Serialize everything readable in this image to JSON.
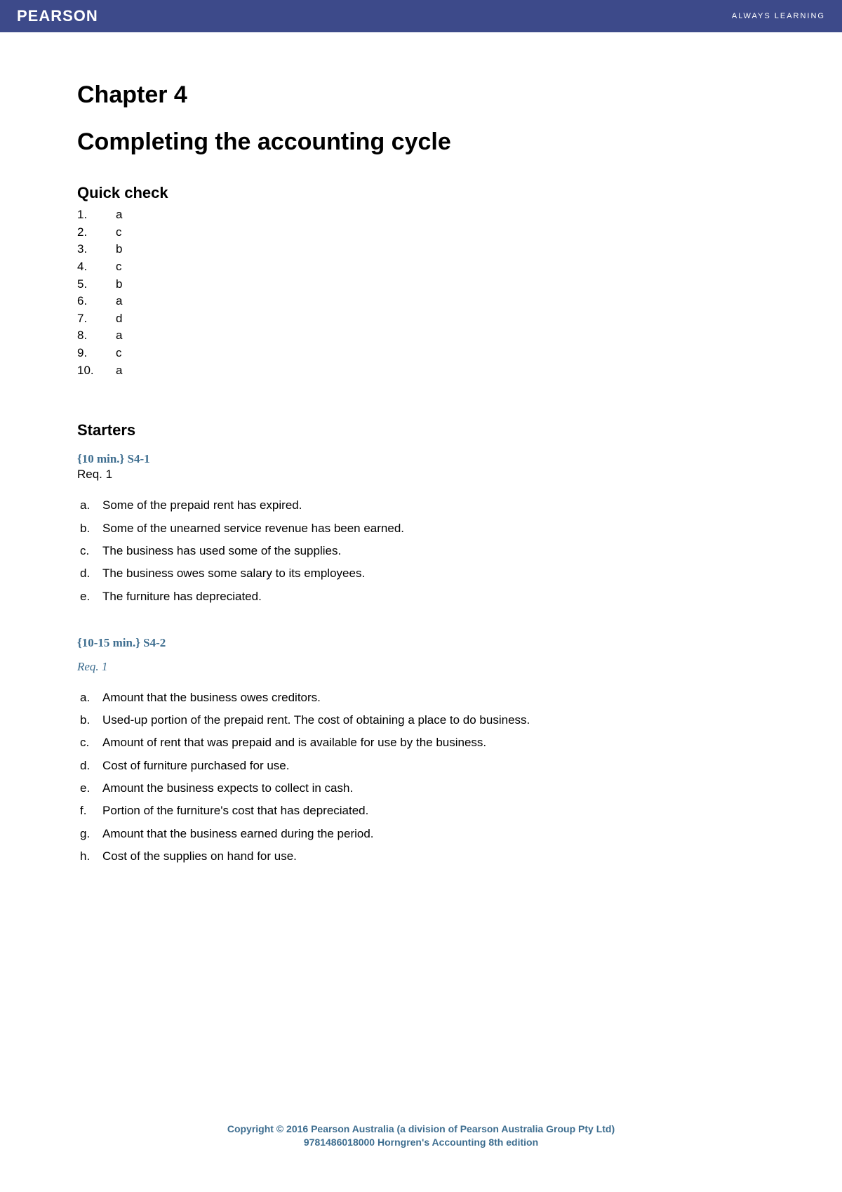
{
  "header": {
    "brand": "PEARSON",
    "tagline": "ALWAYS LEARNING"
  },
  "chapter": {
    "number_label": "Chapter 4",
    "title": "Completing the accounting cycle"
  },
  "quick_check": {
    "heading": "Quick check",
    "items": [
      {
        "num": "1.",
        "ans": "a"
      },
      {
        "num": "2.",
        "ans": "c"
      },
      {
        "num": "3.",
        "ans": "b"
      },
      {
        "num": "4.",
        "ans": "c"
      },
      {
        "num": "5.",
        "ans": "b"
      },
      {
        "num": "6.",
        "ans": "a"
      },
      {
        "num": "7.",
        "ans": "d"
      },
      {
        "num": "8.",
        "ans": "a"
      },
      {
        "num": "9.",
        "ans": "c"
      },
      {
        "num": "10.",
        "ans": "a"
      }
    ]
  },
  "starters": {
    "heading": "Starters",
    "s4_1": {
      "label": "{10 min.} S4-1",
      "req": "Req. 1",
      "answers": [
        {
          "letter": "a.",
          "text": "Some of the prepaid rent has expired."
        },
        {
          "letter": "b.",
          "text": "Some of the unearned service revenue has been earned."
        },
        {
          "letter": "c.",
          "text": "The business has used some of the supplies."
        },
        {
          "letter": "d.",
          "text": "The business owes some salary to its employees."
        },
        {
          "letter": "e.",
          "text": "The furniture has depreciated."
        }
      ]
    },
    "s4_2": {
      "label": "{10-15 min.} S4-2",
      "req": "Req. 1",
      "answers": [
        {
          "letter": "a.",
          "text": "Amount that the business owes creditors."
        },
        {
          "letter": "b.",
          "text": "Used-up portion of the prepaid rent. The cost of obtaining a place to do business."
        },
        {
          "letter": "c.",
          "text": "Amount of rent that was prepaid and is available for use by the business."
        },
        {
          "letter": "d.",
          "text": "Cost of furniture purchased for use."
        },
        {
          "letter": "e.",
          "text": "Amount the business expects to collect in cash."
        },
        {
          "letter": "f.",
          "text": "Portion of the furniture's cost that has depreciated."
        },
        {
          "letter": "g.",
          "text": "Amount that the business earned during the period."
        },
        {
          "letter": "h.",
          "text": "Cost of the supplies on hand for use."
        }
      ]
    }
  },
  "footer": {
    "line1": "Copyright © 2016 Pearson Australia (a division of Pearson Australia Group Pty Ltd)",
    "line2": "9781486018000 Horngren's Accounting 8th edition"
  },
  "colors": {
    "header_bg": "#3d4a8a",
    "accent": "#3d6d8f",
    "text": "#000000",
    "page_bg": "#ffffff"
  }
}
